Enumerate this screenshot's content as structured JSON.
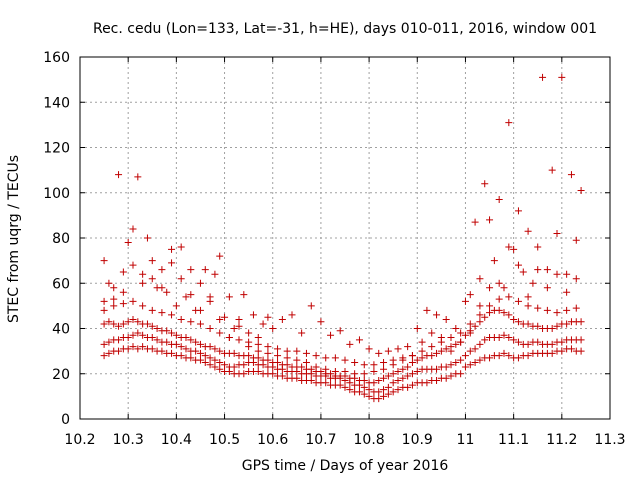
{
  "chart_data": {
    "type": "scatter",
    "title": "Rec. cedu (Lon=133, Lat=-31, h=HE), days 010-011, 2016, window 001",
    "xlabel": "GPS time / Days of year 2016",
    "ylabel": "STEC from uqrg / TECUs",
    "xlim": [
      10.2,
      11.3
    ],
    "ylim": [
      0,
      160
    ],
    "xticks": [
      "10.2",
      "10.3",
      "10.4",
      "10.5",
      "10.6",
      "10.7",
      "10.8",
      "10.9",
      "11",
      "11.1",
      "11.2",
      "11.3"
    ],
    "yticks": [
      "0",
      "20",
      "40",
      "60",
      "80",
      "100",
      "120",
      "140",
      "160"
    ],
    "grid": true,
    "marker": "plus",
    "color": "#c00000",
    "series": [
      {
        "x": [
          10.25,
          10.26,
          10.27,
          10.28,
          10.29,
          10.3,
          10.31,
          10.32,
          10.33,
          10.34,
          10.35,
          10.36,
          10.37,
          10.38,
          10.39,
          10.4,
          10.41,
          10.42,
          10.43,
          10.44,
          10.45,
          10.46,
          10.47,
          10.48,
          10.49,
          10.5,
          10.51,
          10.52,
          10.53,
          10.54,
          10.55,
          10.56,
          10.57,
          10.58,
          10.59,
          10.6,
          10.61,
          10.62,
          10.63,
          10.64,
          10.65,
          10.66,
          10.67,
          10.68,
          10.69,
          10.7,
          10.71,
          10.72,
          10.73,
          10.74,
          10.75,
          10.76,
          10.77,
          10.78,
          10.79,
          10.8,
          10.81,
          10.82,
          10.83,
          10.84,
          10.85,
          10.86,
          10.87,
          10.88,
          10.89,
          10.9,
          10.91,
          10.92,
          10.93,
          10.94,
          10.95,
          10.96,
          10.97,
          10.98,
          10.99,
          11.0,
          11.01,
          11.02,
          11.03,
          11.04,
          11.05,
          11.06,
          11.07,
          11.08,
          11.09,
          11.1,
          11.11,
          11.12,
          11.13,
          11.14,
          11.15,
          11.16,
          11.17,
          11.18,
          11.19,
          11.2,
          11.21,
          11.22,
          11.23,
          11.24
        ],
        "y": [
          28,
          29,
          30,
          30,
          31,
          31,
          32,
          31,
          32,
          31,
          31,
          30,
          30,
          29,
          29,
          28,
          28,
          27,
          27,
          26,
          26,
          25,
          24,
          23,
          22,
          21,
          21,
          20,
          20,
          20,
          21,
          21,
          21,
          20,
          20,
          20,
          19,
          19,
          18,
          18,
          18,
          17,
          17,
          17,
          16,
          16,
          16,
          15,
          15,
          15,
          14,
          13,
          12,
          12,
          11,
          10,
          9,
          9,
          10,
          11,
          12,
          13,
          14,
          14,
          15,
          16,
          16,
          16,
          17,
          17,
          18,
          18,
          19,
          20,
          20,
          23,
          24,
          25,
          26,
          27,
          27,
          28,
          28,
          29,
          28,
          27,
          27,
          28,
          28,
          29,
          29,
          29,
          29,
          29,
          30,
          30,
          31,
          31,
          30,
          30
        ]
      },
      {
        "x": [
          10.25,
          10.26,
          10.27,
          10.28,
          10.29,
          10.3,
          10.31,
          10.32,
          10.33,
          10.34,
          10.35,
          10.36,
          10.37,
          10.38,
          10.39,
          10.4,
          10.41,
          10.42,
          10.43,
          10.44,
          10.45,
          10.46,
          10.47,
          10.48,
          10.49,
          10.5,
          10.51,
          10.52,
          10.53,
          10.54,
          10.55,
          10.56,
          10.57,
          10.58,
          10.59,
          10.6,
          10.61,
          10.62,
          10.63,
          10.64,
          10.65,
          10.66,
          10.67,
          10.68,
          10.69,
          10.7,
          10.71,
          10.72,
          10.73,
          10.74,
          10.75,
          10.76,
          10.77,
          10.78,
          10.79,
          10.8,
          10.81,
          10.82,
          10.83,
          10.84,
          10.85,
          10.86,
          10.87,
          10.88,
          10.89,
          10.9,
          10.91,
          10.92,
          10.93,
          10.94,
          10.95,
          10.96,
          10.97,
          10.98,
          10.99,
          11.0,
          11.01,
          11.02,
          11.03,
          11.04,
          11.05,
          11.06,
          11.07,
          11.08,
          11.09,
          11.1,
          11.11,
          11.12,
          11.13,
          11.14,
          11.15,
          11.16,
          11.17,
          11.18,
          11.19,
          11.2,
          11.21,
          11.22,
          11.23,
          11.24
        ],
        "y": [
          33,
          34,
          35,
          35,
          36,
          36,
          37,
          38,
          37,
          36,
          36,
          35,
          34,
          34,
          33,
          33,
          32,
          31,
          30,
          30,
          29,
          28,
          27,
          26,
          25,
          24,
          23,
          23,
          24,
          24,
          25,
          25,
          24,
          24,
          23,
          23,
          22,
          22,
          21,
          21,
          21,
          20,
          20,
          20,
          19,
          19,
          19,
          18,
          18,
          18,
          17,
          16,
          15,
          15,
          14,
          13,
          12,
          12,
          13,
          14,
          16,
          17,
          18,
          19,
          20,
          21,
          22,
          22,
          22,
          22,
          23,
          23,
          24,
          25,
          26,
          28,
          30,
          31,
          33,
          35,
          36,
          36,
          36,
          37,
          36,
          35,
          34,
          33,
          33,
          34,
          34,
          33,
          33,
          33,
          34,
          34,
          35,
          35,
          35,
          35
        ]
      },
      {
        "x": [
          10.25,
          10.26,
          10.27,
          10.28,
          10.29,
          10.3,
          10.31,
          10.32,
          10.33,
          10.34,
          10.35,
          10.36,
          10.37,
          10.38,
          10.39,
          10.4,
          10.41,
          10.42,
          10.43,
          10.44,
          10.45,
          10.46,
          10.47,
          10.48,
          10.49,
          10.5,
          10.51,
          10.52,
          10.53,
          10.54,
          10.55,
          10.56,
          10.57,
          10.58,
          10.59,
          10.6,
          10.61,
          10.62,
          10.63,
          10.64,
          10.65,
          10.66,
          10.67,
          10.68,
          10.69,
          10.7,
          10.71,
          10.72,
          10.73,
          10.74,
          10.75,
          10.76,
          10.77,
          10.78,
          10.79,
          10.8,
          10.81,
          10.82,
          10.83,
          10.84,
          10.85,
          10.86,
          10.87,
          10.88,
          10.89,
          10.9,
          10.91,
          10.92,
          10.93,
          10.94,
          10.95,
          10.96,
          10.97,
          10.98,
          10.99,
          11.0,
          11.01,
          11.02,
          11.03,
          11.04,
          11.05,
          11.06,
          11.07,
          11.08,
          11.09,
          11.1,
          11.11,
          11.12,
          11.13,
          11.14,
          11.15,
          11.16,
          11.17,
          11.18,
          11.19,
          11.2,
          11.21,
          11.22,
          11.23,
          11.24
        ],
        "y": [
          42,
          43,
          42,
          41,
          42,
          43,
          44,
          43,
          42,
          42,
          41,
          40,
          39,
          39,
          38,
          37,
          36,
          36,
          35,
          34,
          33,
          32,
          32,
          31,
          30,
          29,
          29,
          29,
          28,
          28,
          28,
          27,
          27,
          26,
          26,
          25,
          25,
          24,
          24,
          23,
          23,
          23,
          22,
          22,
          21,
          21,
          20,
          20,
          19,
          19,
          19,
          18,
          18,
          17,
          17,
          16,
          16,
          17,
          18,
          19,
          20,
          21,
          22,
          23,
          25,
          26,
          27,
          28,
          28,
          29,
          30,
          31,
          32,
          33,
          34,
          37,
          39,
          41,
          43,
          45,
          47,
          48,
          48,
          47,
          46,
          44,
          43,
          42,
          42,
          41,
          41,
          40,
          40,
          40,
          41,
          42,
          42,
          43,
          43,
          43
        ]
      },
      {
        "x": [
          10.25,
          10.27,
          10.29,
          10.31,
          10.33,
          10.35,
          10.37,
          10.39,
          10.41,
          10.43,
          10.45,
          10.47,
          10.49,
          10.51,
          10.53,
          10.55,
          10.57,
          10.59,
          10.61,
          10.63,
          10.65,
          10.67,
          10.69,
          10.71,
          10.73,
          10.75,
          10.77,
          10.79,
          10.81,
          10.83,
          10.85,
          10.87,
          10.89,
          10.91,
          10.93,
          10.95,
          10.97,
          10.99,
          11.01,
          11.03,
          11.05,
          11.07,
          11.09,
          11.11,
          11.13,
          11.15,
          11.17,
          11.19,
          11.21,
          11.23
        ],
        "y": [
          52,
          50,
          51,
          52,
          50,
          48,
          47,
          46,
          44,
          43,
          42,
          40,
          38,
          36,
          35,
          34,
          33,
          32,
          31,
          30,
          30,
          29,
          28,
          27,
          27,
          26,
          25,
          24,
          24,
          25,
          26,
          27,
          28,
          30,
          32,
          34,
          36,
          38,
          42,
          46,
          50,
          53,
          54,
          52,
          50,
          49,
          48,
          47,
          48,
          49
        ]
      },
      {
        "x": [
          10.25,
          10.26,
          10.27,
          10.28,
          10.29,
          10.3,
          10.31,
          10.32,
          10.33,
          10.34,
          10.35,
          10.36,
          10.37,
          10.38,
          10.39,
          10.4,
          10.41,
          10.42,
          10.43,
          10.44,
          10.45,
          10.46,
          10.47,
          10.48,
          10.49,
          10.5,
          10.51,
          10.52,
          10.53,
          10.54,
          10.55,
          10.56,
          10.57,
          10.58,
          10.59,
          10.6,
          10.62,
          10.64,
          10.66,
          10.68,
          10.7,
          10.72,
          10.74,
          10.76,
          10.78,
          10.8,
          10.82,
          10.84,
          10.86,
          10.88,
          10.9,
          10.92,
          10.94,
          10.96,
          10.98,
          11.0,
          11.01,
          11.02,
          11.03,
          11.04,
          11.05,
          11.06,
          11.07,
          11.08,
          11.09,
          11.1,
          11.11,
          11.12,
          11.13,
          11.14,
          11.15,
          11.16,
          11.17,
          11.18,
          11.19,
          11.2,
          11.21,
          11.22,
          11.23,
          11.24
        ],
        "y": [
          70,
          60,
          58,
          108,
          65,
          78,
          68,
          107,
          64,
          80,
          62,
          58,
          66,
          56,
          75,
          50,
          76,
          54,
          66,
          48,
          60,
          66,
          52,
          64,
          72,
          45,
          54,
          40,
          44,
          55,
          38,
          46,
          36,
          42,
          45,
          40,
          44,
          46,
          38,
          50,
          43,
          37,
          39,
          33,
          35,
          31,
          29,
          30,
          31,
          32,
          40,
          48,
          46,
          44,
          40,
          52,
          55,
          87,
          62,
          104,
          88,
          70,
          97,
          58,
          131,
          75,
          92,
          65,
          83,
          60,
          76,
          151,
          66,
          110,
          82,
          151,
          64,
          108,
          79,
          101
        ]
      },
      {
        "x": [
          10.25,
          10.27,
          10.29,
          10.31,
          10.33,
          10.35,
          10.37,
          10.39,
          10.41,
          10.43,
          10.45,
          10.47,
          10.49,
          10.51,
          10.53,
          10.55,
          10.57,
          10.59,
          10.61,
          10.63,
          10.65,
          10.67,
          10.69,
          10.71,
          10.73,
          10.75,
          10.77,
          10.79,
          10.81,
          10.83,
          10.85,
          10.87,
          10.89,
          10.91,
          10.93,
          10.95,
          10.97,
          10.99,
          11.01,
          11.03,
          11.05,
          11.07,
          11.09,
          11.11,
          11.13,
          11.15,
          11.17,
          11.19,
          11.21,
          11.23
        ],
        "y": [
          48,
          53,
          56,
          84,
          60,
          70,
          58,
          69,
          62,
          55,
          48,
          54,
          44,
          36,
          41,
          32,
          30,
          29,
          28,
          27,
          26,
          25,
          23,
          22,
          21,
          21,
          20,
          20,
          21,
          22,
          24,
          26,
          28,
          34,
          38,
          36,
          30,
          34,
          38,
          50,
          58,
          60,
          76,
          68,
          54,
          66,
          58,
          64,
          56,
          62
        ]
      }
    ]
  }
}
